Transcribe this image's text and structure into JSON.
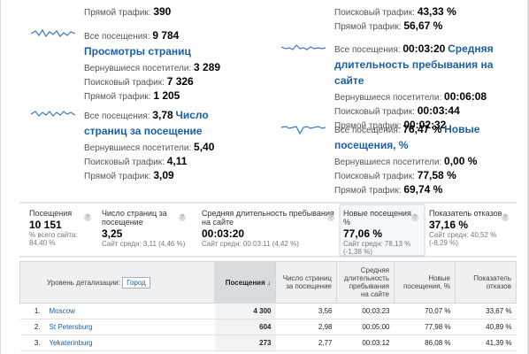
{
  "left_column": {
    "top_rows": [
      {
        "label": "Прямой трафик:",
        "value": "390"
      }
    ],
    "blocks": [
      {
        "label": "Все посещения:",
        "value": "9 784",
        "metric": "Просмотры страниц",
        "rows": [
          {
            "label": "Вернувшиеся посетители:",
            "value": "3 289"
          },
          {
            "label": "Поисковый трафик:",
            "value": "7 326"
          },
          {
            "label": "Прямой трафик:",
            "value": "1 205"
          }
        ]
      },
      {
        "label": "Все посещения:",
        "value": "3,78",
        "metric": "Число страниц за посещение",
        "rows": [
          {
            "label": "Вернувшиеся посетители:",
            "value": "5,40"
          },
          {
            "label": "Поисковый трафик:",
            "value": "4,11"
          },
          {
            "label": "Прямой трафик:",
            "value": "3,09"
          }
        ]
      }
    ]
  },
  "right_column": {
    "top_rows": [
      {
        "label": "Поисковый трафик:",
        "value": "43,33 %"
      },
      {
        "label": "Прямой трафик:",
        "value": "56,67 %"
      }
    ],
    "blocks": [
      {
        "label": "Все посещения:",
        "value": "00:03:20",
        "metric": "Средняя длительность пребывания на сайте",
        "rows": [
          {
            "label": "Вернувшиеся посетители:",
            "value": "00:06:08"
          },
          {
            "label": "Поисковый трафик:",
            "value": "00:03:44"
          },
          {
            "label": "Прямой трафик:",
            "value": "00:02:32"
          }
        ]
      },
      {
        "label": "Все посещения:",
        "value": "76,47 %",
        "metric": "Новые посещения, %",
        "rows": [
          {
            "label": "Вернувшиеся посетители:",
            "value": "0,00 %"
          },
          {
            "label": "Поисковый трафик:",
            "value": "77,58 %"
          },
          {
            "label": "Прямой трафик:",
            "value": "69,74 %"
          }
        ]
      }
    ]
  },
  "summary": [
    {
      "title": "Посещения",
      "value": "10 151",
      "sub": "% всего сайта: 84,40 %"
    },
    {
      "title": "Число страниц за посещение",
      "value": "3,25",
      "sub": "Сайт средн: 3,11 (4,46 %)"
    },
    {
      "title": "Средняя длительность пребывания на сайте",
      "value": "00:03:20",
      "sub": "Сайт средн: 00:03:11 (4,42 %)"
    },
    {
      "title": "Новые посещения, %",
      "value": "77,06 %",
      "sub": "Сайт средн: 78,13 % (-1,38 %)"
    },
    {
      "title": "Показатель отказов",
      "value": "37,16 %",
      "sub": "Сайт средн: 40,52 % (-8,29 %)"
    }
  ],
  "table": {
    "detail_label": "Уровень детализации:",
    "detail_value": "Город",
    "columns": [
      "Посещения ↓",
      "Число страниц за посещение",
      "Средняя длительность пребывания на сайте",
      "Новые посещения, %",
      "Показатель отказов"
    ],
    "rows": [
      [
        "1.",
        "Moscow",
        "4 300",
        "3,56",
        "00:03:23",
        "70,07 %",
        "33,67 %"
      ],
      [
        "2.",
        "St Petersburg",
        "604",
        "2,98",
        "00:05:00",
        "77,98 %",
        "40,89 %"
      ],
      [
        "3.",
        "Yekaterinburg",
        "273",
        "2,77",
        "00:03:12",
        "86,08 %",
        "41,39 %"
      ]
    ]
  }
}
